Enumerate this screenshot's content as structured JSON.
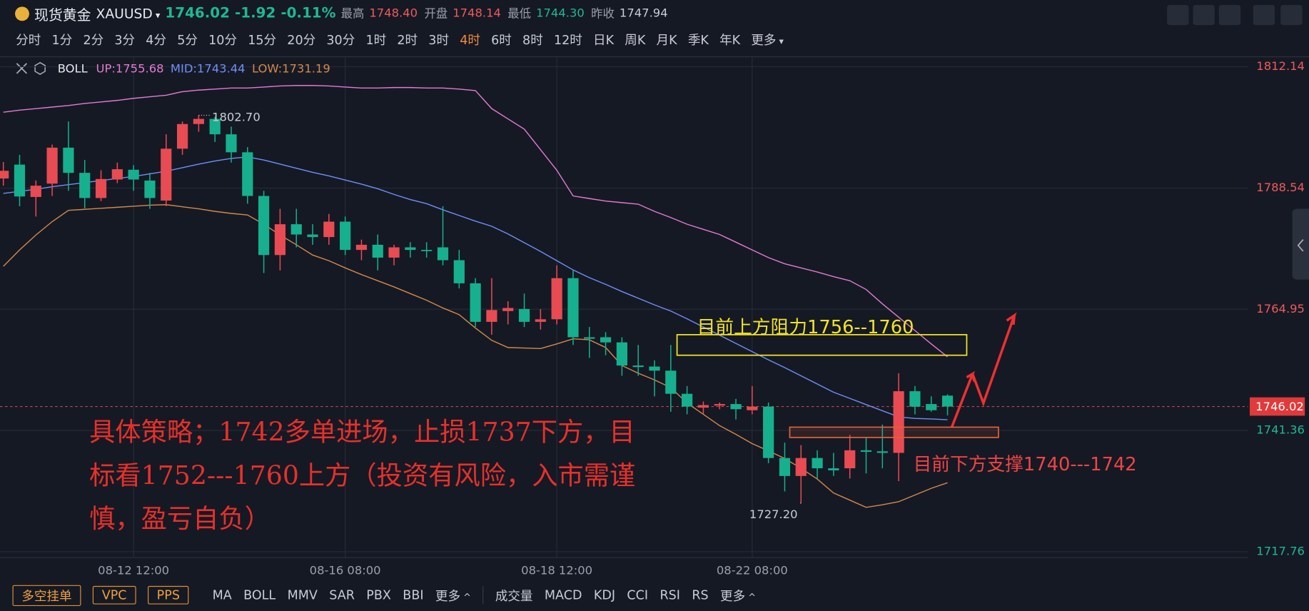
{
  "header": {
    "name": "现货黄金",
    "symbol": "XAUUSD",
    "price": "1746.02",
    "change": "-1.92",
    "change_pct": "-0.11%",
    "stats": [
      {
        "label": "最高",
        "value": "1748.40",
        "tone": "up"
      },
      {
        "label": "开盘",
        "value": "1748.14",
        "tone": "up"
      },
      {
        "label": "最低",
        "value": "1744.30",
        "tone": "down"
      },
      {
        "label": "昨收",
        "value": "1747.94",
        "tone": "flat"
      }
    ]
  },
  "timeframes": [
    {
      "label": "分时"
    },
    {
      "label": "1分"
    },
    {
      "label": "2分"
    },
    {
      "label": "3分"
    },
    {
      "label": "4分"
    },
    {
      "label": "5分"
    },
    {
      "label": "10分"
    },
    {
      "label": "15分"
    },
    {
      "label": "20分"
    },
    {
      "label": "30分"
    },
    {
      "label": "1时"
    },
    {
      "label": "2时"
    },
    {
      "label": "3时"
    },
    {
      "label": "4时",
      "active": true
    },
    {
      "label": "6时"
    },
    {
      "label": "8时"
    },
    {
      "label": "12时"
    },
    {
      "label": "日K"
    },
    {
      "label": "周K"
    },
    {
      "label": "月K"
    },
    {
      "label": "季K"
    },
    {
      "label": "年K"
    },
    {
      "label": "更多",
      "menu": true
    }
  ],
  "chart_data": {
    "type": "candlestick",
    "indicator_name": "BOLL",
    "up_color": "#e84b52",
    "down_color": "#16b08e",
    "grid": true,
    "ylim": [
      1716.62,
      1814.09
    ],
    "yticks": [
      1717.76,
      1741.36,
      1764.95,
      1788.54,
      1812.14
    ],
    "last_price": 1746.02,
    "categories": [
      null,
      null,
      null,
      null,
      null,
      null,
      null,
      null,
      "08-12 12:00",
      null,
      null,
      null,
      null,
      null,
      null,
      null,
      null,
      null,
      null,
      null,
      null,
      "08-16 08:00",
      null,
      null,
      null,
      null,
      null,
      null,
      null,
      null,
      null,
      null,
      null,
      null,
      "08-18 12:00",
      null,
      null,
      null,
      null,
      null,
      null,
      null,
      null,
      null,
      null,
      null,
      "08-22 08:00",
      null,
      null,
      null,
      null,
      null,
      null,
      null,
      null,
      null,
      null,
      null,
      null
    ],
    "open": [
      1790.4,
      1793.1,
      1786.8,
      1789.4,
      1796.4,
      1791.5,
      1786.6,
      1790.2,
      1792.1,
      1790.0,
      1786.1,
      1796.2,
      1801.0,
      1802.0,
      1799.0,
      1795.5,
      1787.0,
      1775.5,
      1781.5,
      1779.5,
      1779.0,
      1782.0,
      1776.5,
      1777.5,
      1775.0,
      1777.0,
      1776.5,
      1777.0,
      1774.5,
      1770.0,
      1762.5,
      1764.6,
      1765.0,
      1762.5,
      1763.0,
      1771.0,
      1759.5,
      1759.5,
      1758.5,
      1754.0,
      1753.8,
      1753.0,
      1748.5,
      1745.8,
      1746.2,
      1746.5,
      1745.3,
      1746.0,
      1736.0,
      1732.5,
      1736.0,
      1734.0,
      1734.0,
      1737.5,
      1737.3,
      1737.0,
      1749.0,
      1746.5,
      1748.14
    ],
    "high": [
      1793.6,
      1795.0,
      1790.0,
      1797.0,
      1801.5,
      1794.0,
      1792.0,
      1793.5,
      1793.0,
      1791.5,
      1799.0,
      1801.5,
      1802.7,
      1802.4,
      1800.5,
      1796.5,
      1788.0,
      1784.5,
      1784.5,
      1781.5,
      1783.5,
      1783.0,
      1778.5,
      1779.5,
      1777.5,
      1778.0,
      1778.0,
      1785.0,
      1776.5,
      1771.0,
      1771.0,
      1766.5,
      1768.0,
      1765.0,
      1773.5,
      1772.5,
      1761.5,
      1760.5,
      1759.5,
      1758.0,
      1755.0,
      1758.0,
      1750.0,
      1747.0,
      1746.8,
      1747.5,
      1750.0,
      1746.8,
      1739.0,
      1738.5,
      1737.5,
      1737.0,
      1740.5,
      1740.0,
      1742.5,
      1752.5,
      1750.0,
      1748.0,
      1748.4
    ],
    "low": [
      1789.0,
      1785.0,
      1783.0,
      1787.0,
      1788.0,
      1784.6,
      1786.0,
      1789.5,
      1788.0,
      1784.5,
      1785.0,
      1795.0,
      1799.5,
      1797.5,
      1793.5,
      1785.5,
      1772.0,
      1772.5,
      1777.0,
      1777.5,
      1777.5,
      1775.5,
      1774.5,
      1772.5,
      1773.5,
      1775.0,
      1775.0,
      1773.5,
      1769.0,
      1761.5,
      1760.0,
      1762.0,
      1761.5,
      1761.0,
      1762.0,
      1758.0,
      1755.5,
      1756.0,
      1752.0,
      1752.0,
      1748.0,
      1745.0,
      1744.5,
      1744.5,
      1745.5,
      1743.5,
      1744.5,
      1735.0,
      1729.5,
      1727.2,
      1732.0,
      1732.5,
      1732.0,
      1733.0,
      1734.0,
      1731.5,
      1744.5,
      1745.0,
      1744.3
    ],
    "close": [
      1791.9,
      1786.9,
      1789.0,
      1796.4,
      1791.5,
      1786.6,
      1790.3,
      1792.2,
      1790.2,
      1786.6,
      1796.2,
      1801.0,
      1802.0,
      1799.0,
      1795.5,
      1787.0,
      1775.5,
      1781.5,
      1779.5,
      1779.0,
      1782.0,
      1776.5,
      1777.5,
      1775.0,
      1777.0,
      1776.5,
      1776.3,
      1774.5,
      1770.0,
      1762.5,
      1764.8,
      1765.2,
      1762.5,
      1763.0,
      1771.0,
      1759.5,
      1759.2,
      1758.5,
      1754.0,
      1753.7,
      1753.0,
      1748.5,
      1746.0,
      1746.3,
      1746.5,
      1745.5,
      1746.0,
      1736.0,
      1732.5,
      1736.0,
      1734.0,
      1733.6,
      1737.5,
      1737.2,
      1737.0,
      1749.0,
      1746.0,
      1745.3,
      1746.02
    ],
    "bands": [
      {
        "name": "UP:1755.68",
        "color": "#e27bd0",
        "values": [
          1803.3,
          1803.7,
          1804.0,
          1804.3,
          1804.6,
          1805.0,
          1805.3,
          1805.6,
          1806.0,
          1806.3,
          1806.6,
          1807.3,
          1807.6,
          1807.8,
          1808.0,
          1808.0,
          1808.2,
          1808.4,
          1808.5,
          1808.5,
          1808.4,
          1808.2,
          1808.0,
          1808.0,
          1808.1,
          1808.1,
          1808.0,
          1808.0,
          1807.8,
          1807.5,
          1804,
          1802,
          1800,
          1796,
          1792,
          1787,
          1786.5,
          1786,
          1785.7,
          1785.4,
          1784,
          1782.8,
          1781.5,
          1780.5,
          1779.5,
          1778,
          1776.5,
          1775,
          1773.8,
          1773,
          1772.2,
          1771.3,
          1770.5,
          1768.8,
          1766,
          1763.4,
          1760.8,
          1758.2,
          1755.68
        ]
      },
      {
        "name": "MID:1743.44",
        "color": "#6f8ff5",
        "values": [
          1787.5,
          1787.9,
          1788.3,
          1788.8,
          1789.2,
          1789.6,
          1790.0,
          1790.4,
          1790.8,
          1791.3,
          1791.8,
          1792.5,
          1793.2,
          1793.8,
          1794.3,
          1794.6,
          1794.0,
          1793.2,
          1792.4,
          1791.6,
          1790.9,
          1790.1,
          1789.3,
          1788.4,
          1787.3,
          1786.3,
          1785.5,
          1784.3,
          1783.2,
          1782.1,
          1781.1,
          1779.6,
          1777.9,
          1776.2,
          1774.4,
          1772.6,
          1771.1,
          1769.8,
          1768.4,
          1767.1,
          1765.8,
          1764.6,
          1763.1,
          1761.5,
          1759.9,
          1758.3,
          1756.7,
          1755.1,
          1753.6,
          1752.0,
          1750.4,
          1748.8,
          1747.6,
          1746.4,
          1745.2,
          1744.0,
          1743.7,
          1743.6,
          1743.44
        ]
      },
      {
        "name": "LOW:1731.19",
        "color": "#d4894a",
        "values": [
          1773.3,
          1776.5,
          1779.4,
          1782.0,
          1784.2,
          1784.4,
          1784.6,
          1784.8,
          1785.0,
          1785.2,
          1785.3,
          1784.9,
          1784.5,
          1784.0,
          1783.6,
          1783.3,
          1781.5,
          1779.4,
          1777.5,
          1775.5,
          1774.4,
          1773.0,
          1771.7,
          1770.5,
          1769.3,
          1768.0,
          1766.7,
          1765.2,
          1763.9,
          1761.3,
          1758.9,
          1757.5,
          1757.4,
          1757.3,
          1758.2,
          1759.2,
          1759.0,
          1757.5,
          1754.0,
          1752.5,
          1751.2,
          1749.7,
          1746.7,
          1744.5,
          1742.3,
          1740.6,
          1738.8,
          1737.4,
          1735.9,
          1734.0,
          1731.9,
          1729.2,
          1727.8,
          1726.4,
          1726.9,
          1727.5,
          1728.8,
          1730.1,
          1731.19
        ]
      }
    ],
    "extremes": [
      {
        "value": 1802.7,
        "label": "1802.70",
        "kind": "high"
      },
      {
        "value": 1727.2,
        "label": "1727.20",
        "kind": "low"
      }
    ],
    "zones": [
      {
        "label": "目前上方阻力1756--1760",
        "range": [
          1756,
          1760
        ],
        "color": "#f2e327",
        "text_color": "#f2e327"
      },
      {
        "label": "目前下方支撑1740---1742",
        "range": [
          1740,
          1742
        ],
        "color": "#e0603a",
        "text_color": "#f04444"
      }
    ],
    "strategy_text": [
      "具体策略；1742多单进场，止损1737下方，目",
      "标看1752---1760上方（投资有风险，入市需谨",
      "慎，盈亏自负）"
    ]
  },
  "bottom": {
    "buttons": [
      "多空挂单",
      "VPC",
      "PPS"
    ],
    "main_indicators": [
      "MA",
      "BOLL",
      "MMV",
      "SAR",
      "PBX",
      "BBI"
    ],
    "main_more": "更多",
    "sub_indicators": [
      "成交量",
      "MACD",
      "KDJ",
      "CCI",
      "RSI",
      "RS"
    ],
    "sub_more": "更多"
  }
}
